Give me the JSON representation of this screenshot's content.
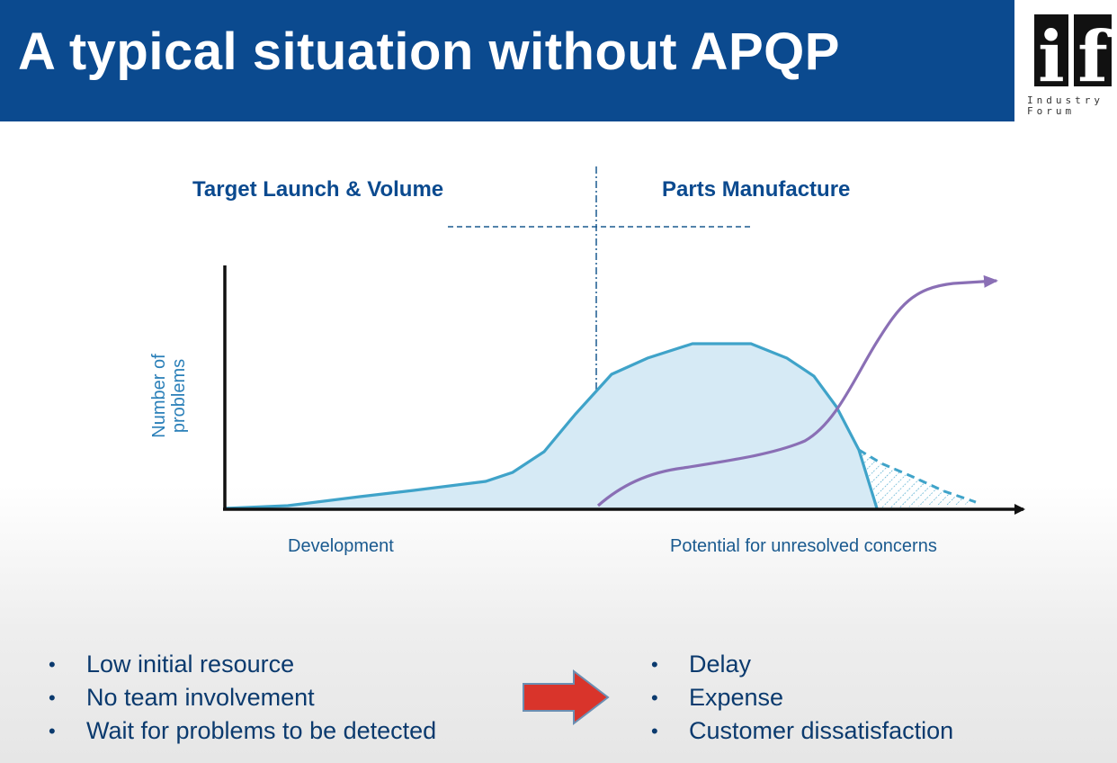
{
  "slide": {
    "title": "A typical situation without APQP"
  },
  "logo": {
    "mark": "if",
    "line1": "Industry",
    "line2": "Forum"
  },
  "diagram": {
    "phase_left": "Target Launch & Volume",
    "phase_right": "Parts Manufacture",
    "y_axis_line1": "Number of",
    "y_axis_line2": "problems",
    "x_left": "Development",
    "x_right": "Potential for unresolved concerns"
  },
  "causes": [
    "Low initial  resource",
    "No team involvement",
    "Wait for problems to be detected"
  ],
  "effects": [
    "Delay",
    "Expense",
    "Customer dissatisfaction"
  ],
  "colors": {
    "title_bar": "#0b4a8f",
    "curve_stroke": "#3fa3c9",
    "curve_fill": "#d6eaf5",
    "cost_curve": "#8a6fb5",
    "arrow_red": "#d9342b"
  }
}
